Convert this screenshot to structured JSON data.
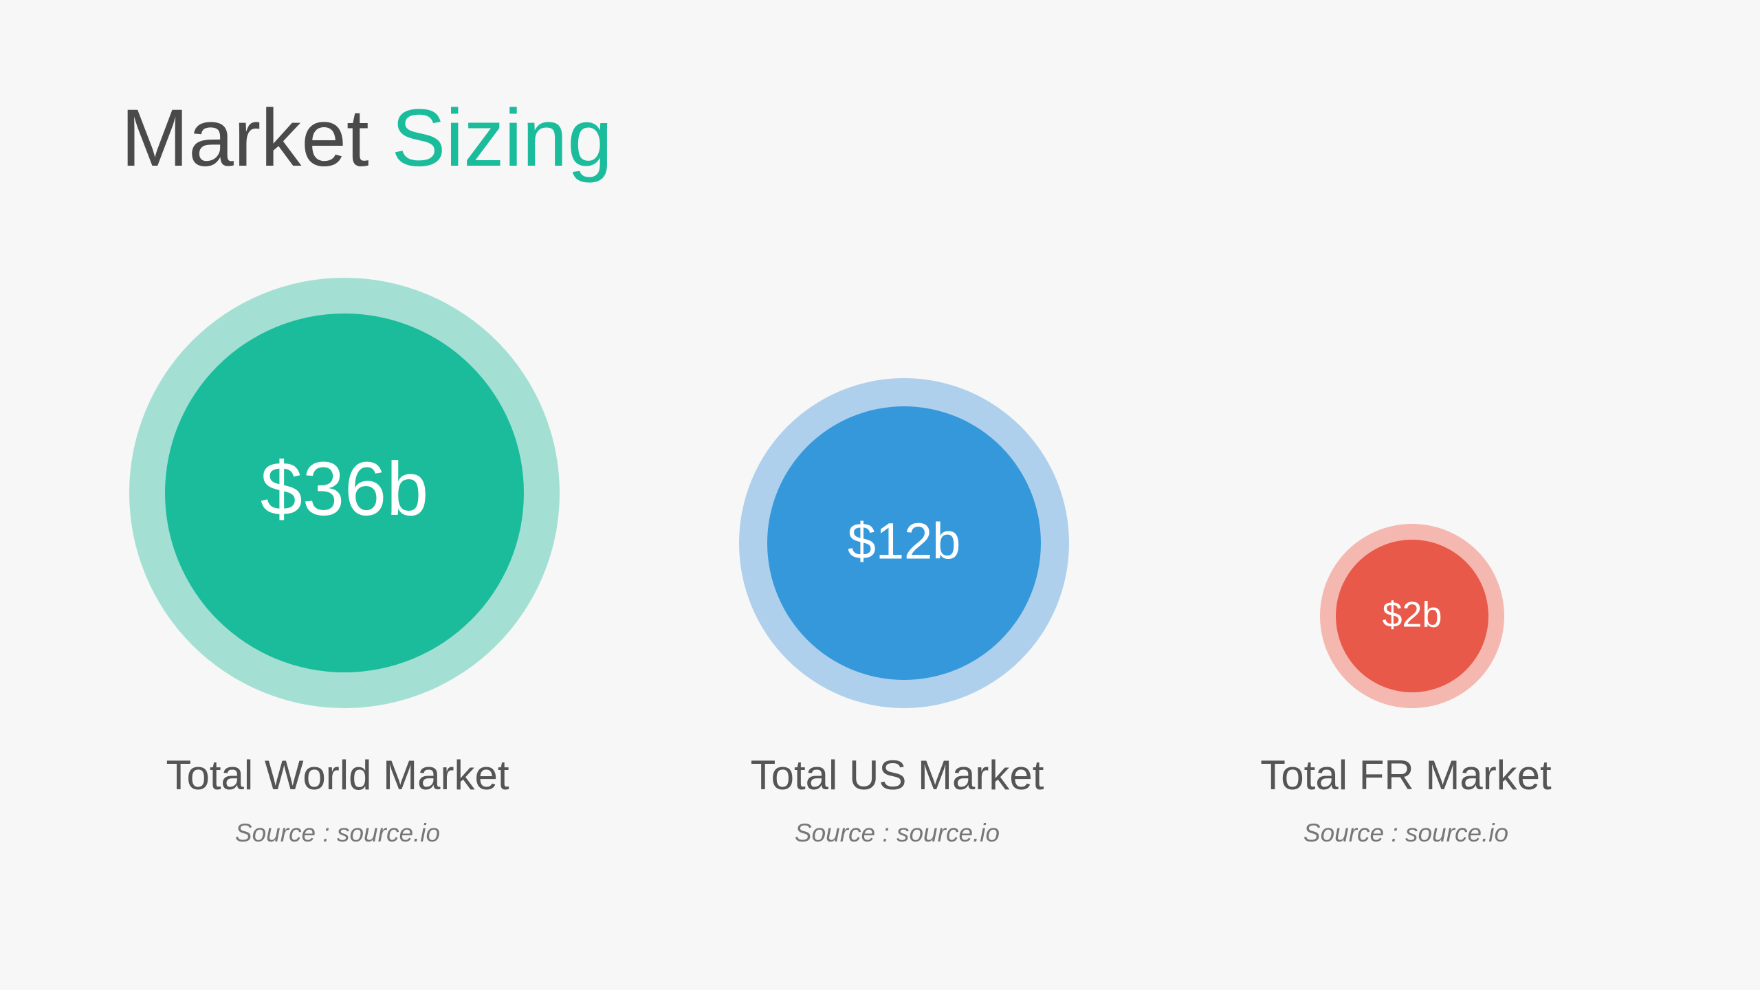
{
  "header": {
    "title": {
      "lead": "Market",
      "highlight": "Sizing"
    }
  },
  "markets": [
    {
      "value": "$36b",
      "label": "Total World Market",
      "source": "Source : source.io"
    },
    {
      "value": "$12b",
      "label": "Total US Market",
      "source": "Source : source.io"
    },
    {
      "value": "$2b",
      "label": "Total FR Market",
      "source": "Source : source.io"
    }
  ]
}
